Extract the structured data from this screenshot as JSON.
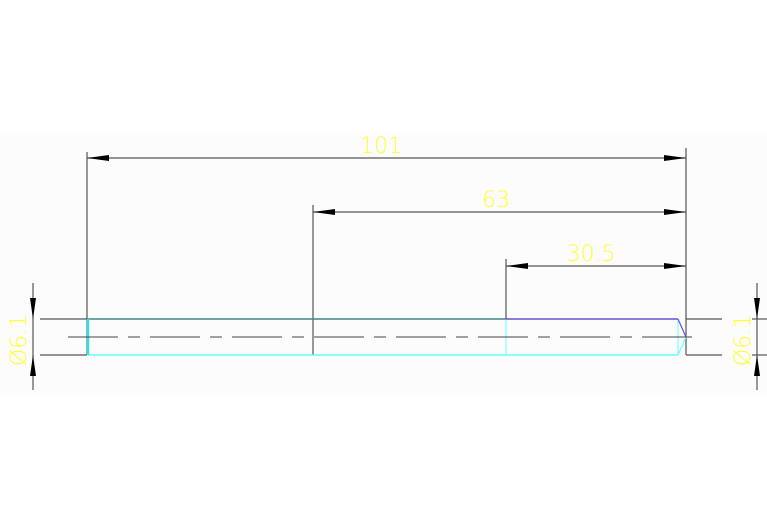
{
  "dimensions": {
    "overall_length": "101",
    "length_63": "63",
    "length_30_5": "30.5",
    "diameter_left": "Ø6.1",
    "diameter_right": "Ø6.1"
  },
  "colors": {
    "background": "#ffffff",
    "band": "#fbfcfb",
    "dimension_text": "#ffff33",
    "dimension_line": "#555555",
    "outline_teal": "#3c8884",
    "outline_cyan": "#66ffff",
    "outline_purple": "#6a4fd0",
    "arrow": "#000000"
  }
}
